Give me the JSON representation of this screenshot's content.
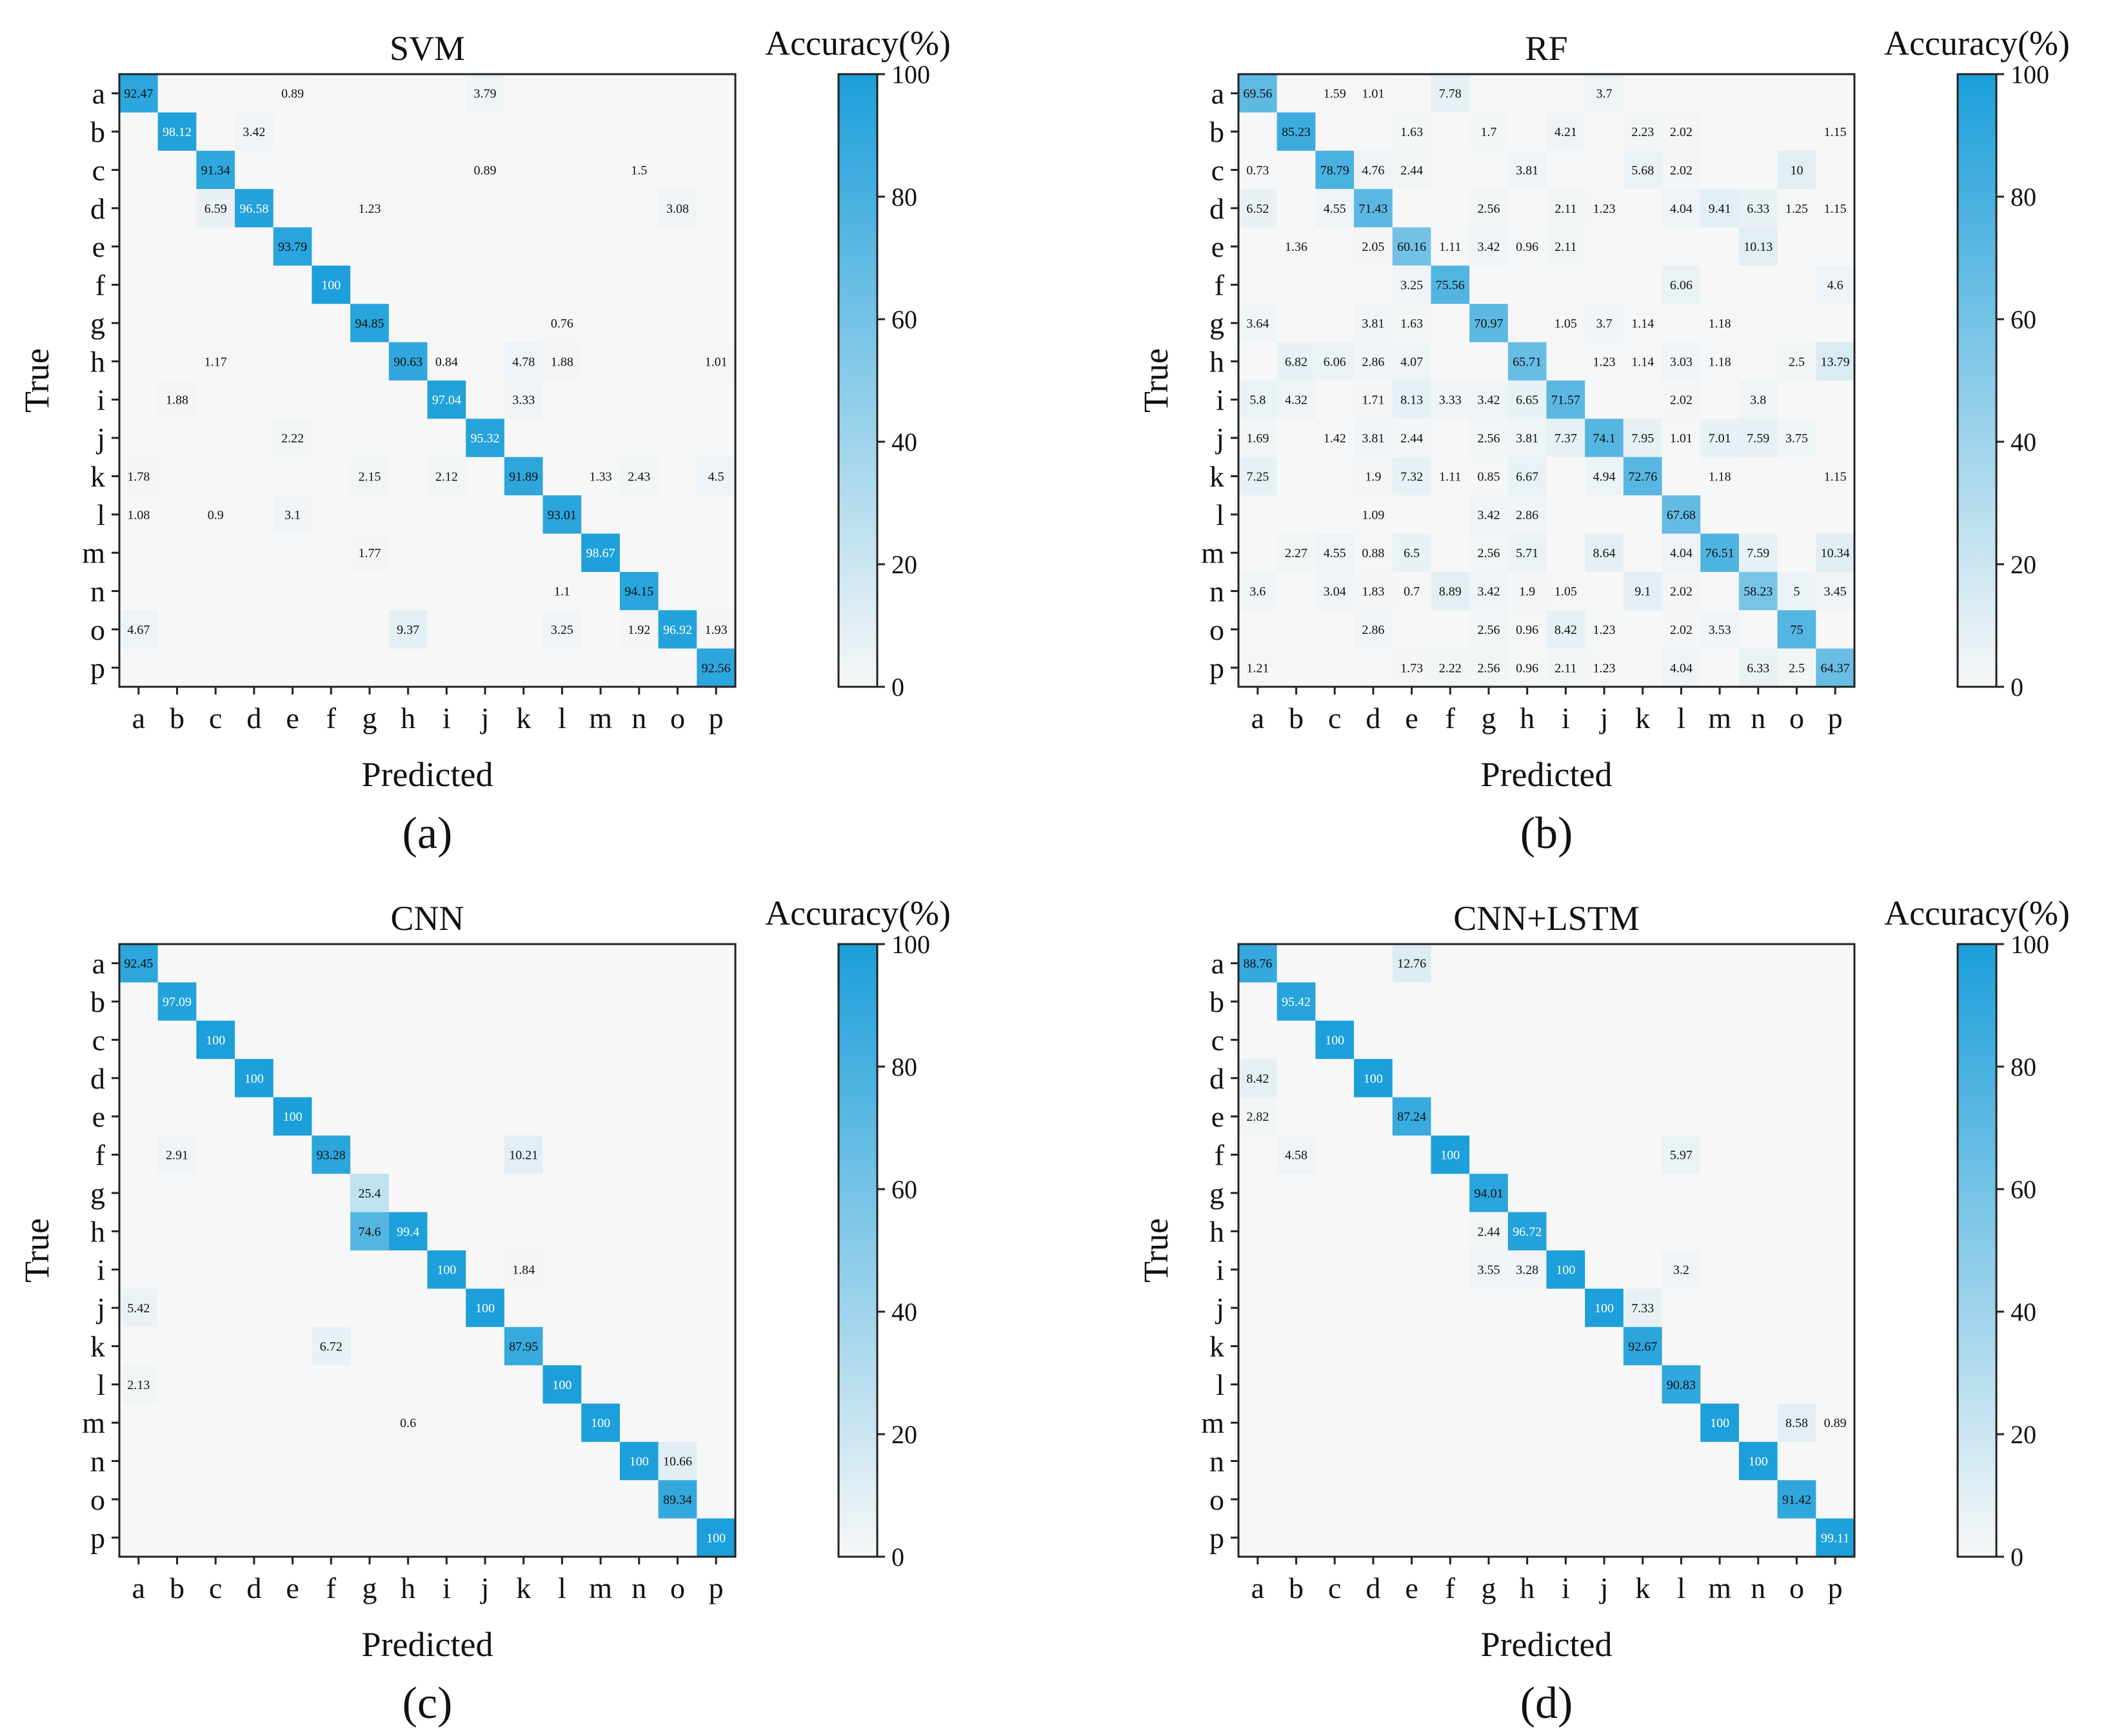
{
  "figure": {
    "colormap": {
      "low": "#f7f7f7",
      "high": "#1c9fda"
    },
    "colorbar_title": "Accuracy(%)",
    "colorbar_range": [
      0,
      100
    ],
    "colorbar_ticks": [
      "0",
      "20",
      "40",
      "60",
      "80",
      "100"
    ]
  },
  "chart_data": [
    {
      "type": "heatmap",
      "title": "SVM",
      "caption": "(a)",
      "xlabel": "Predicted",
      "ylabel": "True",
      "x_labels": [
        "a",
        "b",
        "c",
        "d",
        "e",
        "f",
        "g",
        "h",
        "i",
        "j",
        "k",
        "l",
        "m",
        "n",
        "o",
        "p"
      ],
      "y_labels": [
        "a",
        "b",
        "c",
        "d",
        "e",
        "f",
        "g",
        "h",
        "i",
        "j",
        "k",
        "l",
        "m",
        "n",
        "o",
        "p"
      ],
      "cells": [
        [
          "a",
          "a",
          "92.47"
        ],
        [
          "a",
          "e",
          "0.89"
        ],
        [
          "a",
          "j",
          "3.79"
        ],
        [
          "b",
          "b",
          "98.12"
        ],
        [
          "b",
          "d",
          "3.42"
        ],
        [
          "c",
          "c",
          "91.34"
        ],
        [
          "c",
          "j",
          "0.89"
        ],
        [
          "c",
          "n",
          "1.5"
        ],
        [
          "d",
          "c",
          "6.59"
        ],
        [
          "d",
          "d",
          "96.58"
        ],
        [
          "d",
          "g",
          "1.23"
        ],
        [
          "d",
          "o",
          "3.08"
        ],
        [
          "e",
          "e",
          "93.79"
        ],
        [
          "f",
          "f",
          "100"
        ],
        [
          "g",
          "g",
          "94.85"
        ],
        [
          "g",
          "l",
          "0.76"
        ],
        [
          "h",
          "c",
          "1.17"
        ],
        [
          "h",
          "h",
          "90.63"
        ],
        [
          "h",
          "i",
          "0.84"
        ],
        [
          "h",
          "k",
          "4.78"
        ],
        [
          "h",
          "l",
          "1.88"
        ],
        [
          "h",
          "p",
          "1.01"
        ],
        [
          "i",
          "b",
          "1.88"
        ],
        [
          "i",
          "i",
          "97.04"
        ],
        [
          "i",
          "k",
          "3.33"
        ],
        [
          "j",
          "e",
          "2.22"
        ],
        [
          "j",
          "j",
          "95.32"
        ],
        [
          "k",
          "a",
          "1.78"
        ],
        [
          "k",
          "g",
          "2.15"
        ],
        [
          "k",
          "i",
          "2.12"
        ],
        [
          "k",
          "k",
          "91.89"
        ],
        [
          "k",
          "m",
          "1.33"
        ],
        [
          "k",
          "n",
          "2.43"
        ],
        [
          "k",
          "p",
          "4.5"
        ],
        [
          "l",
          "a",
          "1.08"
        ],
        [
          "l",
          "c",
          "0.9"
        ],
        [
          "l",
          "e",
          "3.1"
        ],
        [
          "l",
          "l",
          "93.01"
        ],
        [
          "m",
          "g",
          "1.77"
        ],
        [
          "m",
          "m",
          "98.67"
        ],
        [
          "n",
          "l",
          "1.1"
        ],
        [
          "n",
          "n",
          "94.15"
        ],
        [
          "o",
          "a",
          "4.67"
        ],
        [
          "o",
          "h",
          "9.37"
        ],
        [
          "o",
          "l",
          "3.25"
        ],
        [
          "o",
          "n",
          "1.92"
        ],
        [
          "o",
          "o",
          "96.92"
        ],
        [
          "o",
          "p",
          "1.93"
        ],
        [
          "p",
          "p",
          "92.56"
        ]
      ]
    },
    {
      "type": "heatmap",
      "title": "RF",
      "caption": "(b)",
      "xlabel": "Predicted",
      "ylabel": "True",
      "x_labels": [
        "a",
        "b",
        "c",
        "d",
        "e",
        "f",
        "g",
        "h",
        "i",
        "j",
        "k",
        "l",
        "m",
        "n",
        "o",
        "p"
      ],
      "y_labels": [
        "a",
        "b",
        "c",
        "d",
        "e",
        "f",
        "g",
        "h",
        "i",
        "j",
        "k",
        "l",
        "m",
        "n",
        "o",
        "p"
      ],
      "cells": [
        [
          "a",
          "a",
          "69.56"
        ],
        [
          "a",
          "c",
          "1.59"
        ],
        [
          "a",
          "d",
          "1.01"
        ],
        [
          "a",
          "f",
          "7.78"
        ],
        [
          "a",
          "j",
          "3.7"
        ],
        [
          "b",
          "b",
          "85.23"
        ],
        [
          "b",
          "e",
          "1.63"
        ],
        [
          "b",
          "g",
          "1.7"
        ],
        [
          "b",
          "i",
          "4.21"
        ],
        [
          "b",
          "k",
          "2.23"
        ],
        [
          "b",
          "l",
          "2.02"
        ],
        [
          "b",
          "p",
          "1.15"
        ],
        [
          "c",
          "a",
          "0.73"
        ],
        [
          "c",
          "c",
          "78.79"
        ],
        [
          "c",
          "d",
          "4.76"
        ],
        [
          "c",
          "e",
          "2.44"
        ],
        [
          "c",
          "h",
          "3.81"
        ],
        [
          "c",
          "k",
          "5.68"
        ],
        [
          "c",
          "l",
          "2.02"
        ],
        [
          "c",
          "o",
          "10"
        ],
        [
          "d",
          "a",
          "6.52"
        ],
        [
          "d",
          "c",
          "4.55"
        ],
        [
          "d",
          "d",
          "71.43"
        ],
        [
          "d",
          "g",
          "2.56"
        ],
        [
          "d",
          "i",
          "2.11"
        ],
        [
          "d",
          "j",
          "1.23"
        ],
        [
          "d",
          "l",
          "4.04"
        ],
        [
          "d",
          "m",
          "9.41"
        ],
        [
          "d",
          "n",
          "6.33"
        ],
        [
          "d",
          "o",
          "1.25"
        ],
        [
          "d",
          "p",
          "1.15"
        ],
        [
          "e",
          "b",
          "1.36"
        ],
        [
          "e",
          "d",
          "2.05"
        ],
        [
          "e",
          "e",
          "60.16"
        ],
        [
          "e",
          "f",
          "1.11"
        ],
        [
          "e",
          "g",
          "3.42"
        ],
        [
          "e",
          "h",
          "0.96"
        ],
        [
          "e",
          "i",
          "2.11"
        ],
        [
          "e",
          "n",
          "10.13"
        ],
        [
          "f",
          "e",
          "3.25"
        ],
        [
          "f",
          "f",
          "75.56"
        ],
        [
          "f",
          "l",
          "6.06"
        ],
        [
          "f",
          "p",
          "4.6"
        ],
        [
          "g",
          "a",
          "3.64"
        ],
        [
          "g",
          "d",
          "3.81"
        ],
        [
          "g",
          "e",
          "1.63"
        ],
        [
          "g",
          "g",
          "70.97"
        ],
        [
          "g",
          "i",
          "1.05"
        ],
        [
          "g",
          "j",
          "3.7"
        ],
        [
          "g",
          "k",
          "1.14"
        ],
        [
          "g",
          "m",
          "1.18"
        ],
        [
          "h",
          "b",
          "6.82"
        ],
        [
          "h",
          "c",
          "6.06"
        ],
        [
          "h",
          "d",
          "2.86"
        ],
        [
          "h",
          "e",
          "4.07"
        ],
        [
          "h",
          "h",
          "65.71"
        ],
        [
          "h",
          "j",
          "1.23"
        ],
        [
          "h",
          "k",
          "1.14"
        ],
        [
          "h",
          "l",
          "3.03"
        ],
        [
          "h",
          "m",
          "1.18"
        ],
        [
          "h",
          "o",
          "2.5"
        ],
        [
          "h",
          "p",
          "13.79"
        ],
        [
          "i",
          "a",
          "5.8"
        ],
        [
          "i",
          "b",
          "4.32"
        ],
        [
          "i",
          "d",
          "1.71"
        ],
        [
          "i",
          "e",
          "8.13"
        ],
        [
          "i",
          "f",
          "3.33"
        ],
        [
          "i",
          "g",
          "3.42"
        ],
        [
          "i",
          "h",
          "6.65"
        ],
        [
          "i",
          "i",
          "71.57"
        ],
        [
          "i",
          "l",
          "2.02"
        ],
        [
          "i",
          "n",
          "3.8"
        ],
        [
          "j",
          "a",
          "1.69"
        ],
        [
          "j",
          "c",
          "1.42"
        ],
        [
          "j",
          "d",
          "3.81"
        ],
        [
          "j",
          "e",
          "2.44"
        ],
        [
          "j",
          "g",
          "2.56"
        ],
        [
          "j",
          "h",
          "3.81"
        ],
        [
          "j",
          "i",
          "7.37"
        ],
        [
          "j",
          "j",
          "74.1"
        ],
        [
          "j",
          "k",
          "7.95"
        ],
        [
          "j",
          "l",
          "1.01"
        ],
        [
          "j",
          "m",
          "7.01"
        ],
        [
          "j",
          "n",
          "7.59"
        ],
        [
          "j",
          "o",
          "3.75"
        ],
        [
          "k",
          "a",
          "7.25"
        ],
        [
          "k",
          "d",
          "1.9"
        ],
        [
          "k",
          "e",
          "7.32"
        ],
        [
          "k",
          "f",
          "1.11"
        ],
        [
          "k",
          "g",
          "0.85"
        ],
        [
          "k",
          "h",
          "6.67"
        ],
        [
          "k",
          "j",
          "4.94"
        ],
        [
          "k",
          "k",
          "72.76"
        ],
        [
          "k",
          "m",
          "1.18"
        ],
        [
          "k",
          "p",
          "1.15"
        ],
        [
          "l",
          "d",
          "1.09"
        ],
        [
          "l",
          "g",
          "3.42"
        ],
        [
          "l",
          "h",
          "2.86"
        ],
        [
          "l",
          "l",
          "67.68"
        ],
        [
          "m",
          "b",
          "2.27"
        ],
        [
          "m",
          "c",
          "4.55"
        ],
        [
          "m",
          "d",
          "0.88"
        ],
        [
          "m",
          "e",
          "6.5"
        ],
        [
          "m",
          "g",
          "2.56"
        ],
        [
          "m",
          "h",
          "5.71"
        ],
        [
          "m",
          "j",
          "8.64"
        ],
        [
          "m",
          "l",
          "4.04"
        ],
        [
          "m",
          "m",
          "76.51"
        ],
        [
          "m",
          "n",
          "7.59"
        ],
        [
          "m",
          "p",
          "10.34"
        ],
        [
          "n",
          "a",
          "3.6"
        ],
        [
          "n",
          "c",
          "3.04"
        ],
        [
          "n",
          "d",
          "1.83"
        ],
        [
          "n",
          "e",
          "0.7"
        ],
        [
          "n",
          "f",
          "8.89"
        ],
        [
          "n",
          "g",
          "3.42"
        ],
        [
          "n",
          "h",
          "1.9"
        ],
        [
          "n",
          "i",
          "1.05"
        ],
        [
          "n",
          "k",
          "9.1"
        ],
        [
          "n",
          "l",
          "2.02"
        ],
        [
          "n",
          "n",
          "58.23"
        ],
        [
          "n",
          "o",
          "5"
        ],
        [
          "n",
          "p",
          "3.45"
        ],
        [
          "o",
          "d",
          "2.86"
        ],
        [
          "o",
          "g",
          "2.56"
        ],
        [
          "o",
          "h",
          "0.96"
        ],
        [
          "o",
          "i",
          "8.42"
        ],
        [
          "o",
          "j",
          "1.23"
        ],
        [
          "o",
          "l",
          "2.02"
        ],
        [
          "o",
          "m",
          "3.53"
        ],
        [
          "o",
          "o",
          "75"
        ],
        [
          "p",
          "a",
          "1.21"
        ],
        [
          "p",
          "e",
          "1.73"
        ],
        [
          "p",
          "f",
          "2.22"
        ],
        [
          "p",
          "g",
          "2.56"
        ],
        [
          "p",
          "h",
          "0.96"
        ],
        [
          "p",
          "i",
          "2.11"
        ],
        [
          "p",
          "j",
          "1.23"
        ],
        [
          "p",
          "l",
          "4.04"
        ],
        [
          "p",
          "n",
          "6.33"
        ],
        [
          "p",
          "o",
          "2.5"
        ],
        [
          "p",
          "p",
          "64.37"
        ]
      ]
    },
    {
      "type": "heatmap",
      "title": "CNN",
      "caption": "(c)",
      "xlabel": "Predicted",
      "ylabel": "True",
      "x_labels": [
        "a",
        "b",
        "c",
        "d",
        "e",
        "f",
        "g",
        "h",
        "i",
        "j",
        "k",
        "l",
        "m",
        "n",
        "o",
        "p"
      ],
      "y_labels": [
        "a",
        "b",
        "c",
        "d",
        "e",
        "f",
        "g",
        "h",
        "i",
        "j",
        "k",
        "l",
        "m",
        "n",
        "o",
        "p"
      ],
      "cells": [
        [
          "a",
          "a",
          "92.45"
        ],
        [
          "b",
          "b",
          "97.09"
        ],
        [
          "c",
          "c",
          "100"
        ],
        [
          "d",
          "d",
          "100"
        ],
        [
          "e",
          "e",
          "100"
        ],
        [
          "f",
          "b",
          "2.91"
        ],
        [
          "f",
          "f",
          "93.28"
        ],
        [
          "f",
          "k",
          "10.21"
        ],
        [
          "g",
          "g",
          "25.4"
        ],
        [
          "h",
          "g",
          "74.6"
        ],
        [
          "h",
          "h",
          "99.4"
        ],
        [
          "i",
          "i",
          "100"
        ],
        [
          "i",
          "k",
          "1.84"
        ],
        [
          "j",
          "a",
          "5.42"
        ],
        [
          "j",
          "j",
          "100"
        ],
        [
          "k",
          "f",
          "6.72"
        ],
        [
          "k",
          "k",
          "87.95"
        ],
        [
          "l",
          "a",
          "2.13"
        ],
        [
          "l",
          "l",
          "100"
        ],
        [
          "m",
          "h",
          "0.6"
        ],
        [
          "m",
          "m",
          "100"
        ],
        [
          "n",
          "n",
          "100"
        ],
        [
          "n",
          "o",
          "10.66"
        ],
        [
          "o",
          "o",
          "89.34"
        ],
        [
          "p",
          "p",
          "100"
        ]
      ]
    },
    {
      "type": "heatmap",
      "title": "CNN+LSTM",
      "caption": "(d)",
      "xlabel": "Predicted",
      "ylabel": "True",
      "x_labels": [
        "a",
        "b",
        "c",
        "d",
        "e",
        "f",
        "g",
        "h",
        "i",
        "j",
        "k",
        "l",
        "m",
        "n",
        "o",
        "p"
      ],
      "y_labels": [
        "a",
        "b",
        "c",
        "d",
        "e",
        "f",
        "g",
        "h",
        "i",
        "j",
        "k",
        "l",
        "m",
        "n",
        "o",
        "p"
      ],
      "cells": [
        [
          "a",
          "a",
          "88.76"
        ],
        [
          "a",
          "e",
          "12.76"
        ],
        [
          "b",
          "b",
          "95.42"
        ],
        [
          "c",
          "c",
          "100"
        ],
        [
          "d",
          "a",
          "8.42"
        ],
        [
          "d",
          "d",
          "100"
        ],
        [
          "e",
          "a",
          "2.82"
        ],
        [
          "e",
          "e",
          "87.24"
        ],
        [
          "f",
          "b",
          "4.58"
        ],
        [
          "f",
          "f",
          "100"
        ],
        [
          "f",
          "l",
          "5.97"
        ],
        [
          "g",
          "g",
          "94.01"
        ],
        [
          "h",
          "g",
          "2.44"
        ],
        [
          "h",
          "h",
          "96.72"
        ],
        [
          "i",
          "g",
          "3.55"
        ],
        [
          "i",
          "h",
          "3.28"
        ],
        [
          "i",
          "i",
          "100"
        ],
        [
          "i",
          "l",
          "3.2"
        ],
        [
          "j",
          "j",
          "100"
        ],
        [
          "j",
          "k",
          "7.33"
        ],
        [
          "k",
          "k",
          "92.67"
        ],
        [
          "l",
          "l",
          "90.83"
        ],
        [
          "m",
          "m",
          "100"
        ],
        [
          "m",
          "o",
          "8.58"
        ],
        [
          "m",
          "p",
          "0.89"
        ],
        [
          "n",
          "n",
          "100"
        ],
        [
          "o",
          "o",
          "91.42"
        ],
        [
          "p",
          "p",
          "99.11"
        ]
      ]
    }
  ]
}
